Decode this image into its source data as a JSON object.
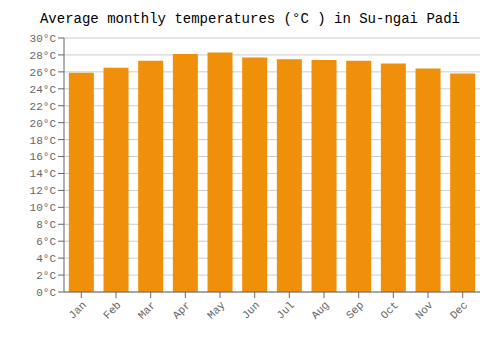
{
  "chart_data": {
    "type": "bar",
    "title": "Average monthly temperatures (°C ) in Su-ngai Padi",
    "categories": [
      "Jan",
      "Feb",
      "Mar",
      "Apr",
      "May",
      "Jun",
      "Jul",
      "Aug",
      "Sep",
      "Oct",
      "Nov",
      "Dec"
    ],
    "values": [
      25.9,
      26.5,
      27.3,
      28.1,
      28.3,
      27.7,
      27.5,
      27.4,
      27.3,
      27.0,
      26.4,
      25.8
    ],
    "color": "#F0900A",
    "ylim": [
      0,
      30
    ],
    "yticks": [
      {
        "value": 0,
        "label": "0°C"
      },
      {
        "value": 2,
        "label": "2°C"
      },
      {
        "value": 4,
        "label": "4°C"
      },
      {
        "value": 6,
        "label": "6°C"
      },
      {
        "value": 8,
        "label": "8°C"
      },
      {
        "value": 10,
        "label": "10°C"
      },
      {
        "value": 12,
        "label": "12°C"
      },
      {
        "value": 14,
        "label": "14°C"
      },
      {
        "value": 16,
        "label": "16°C"
      },
      {
        "value": 18,
        "label": "18°C"
      },
      {
        "value": 20,
        "label": "20°C"
      },
      {
        "value": 22,
        "label": "22°C"
      },
      {
        "value": 24,
        "label": "24°C"
      },
      {
        "value": 26,
        "label": "26°C"
      },
      {
        "value": 28,
        "label": "28°C"
      },
      {
        "value": 30,
        "label": "30°C"
      }
    ],
    "grid": true
  }
}
